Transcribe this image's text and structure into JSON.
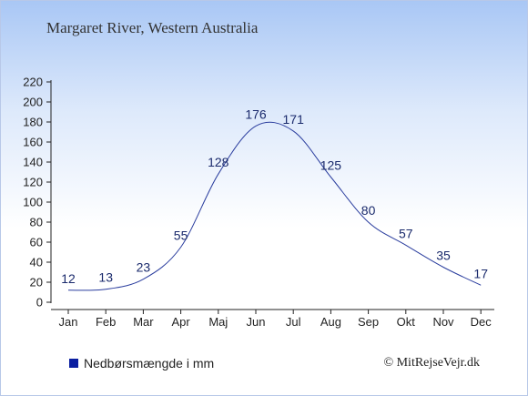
{
  "chart_data": {
    "type": "line",
    "title": "Margaret River, Western Australia",
    "categories": [
      "Jan",
      "Feb",
      "Mar",
      "Apr",
      "Maj",
      "Jun",
      "Jul",
      "Aug",
      "Sep",
      "Okt",
      "Nov",
      "Dec"
    ],
    "series": [
      {
        "name": "Nedbørsmængde i mm",
        "values": [
          12,
          13,
          23,
          55,
          128,
          176,
          171,
          125,
          80,
          57,
          35,
          17
        ]
      }
    ],
    "ylim": [
      0,
      220
    ],
    "yticks": [
      0,
      20,
      40,
      60,
      80,
      100,
      120,
      140,
      160,
      180,
      200,
      220
    ],
    "grid": false,
    "legend": "bottom-left",
    "colors": {
      "line": "#2a3d9e",
      "legend_swatch": "#0a1ea0",
      "labels": "#1a2a6c"
    }
  },
  "footer": {
    "copyright": "© MitRejseVejr.dk"
  }
}
